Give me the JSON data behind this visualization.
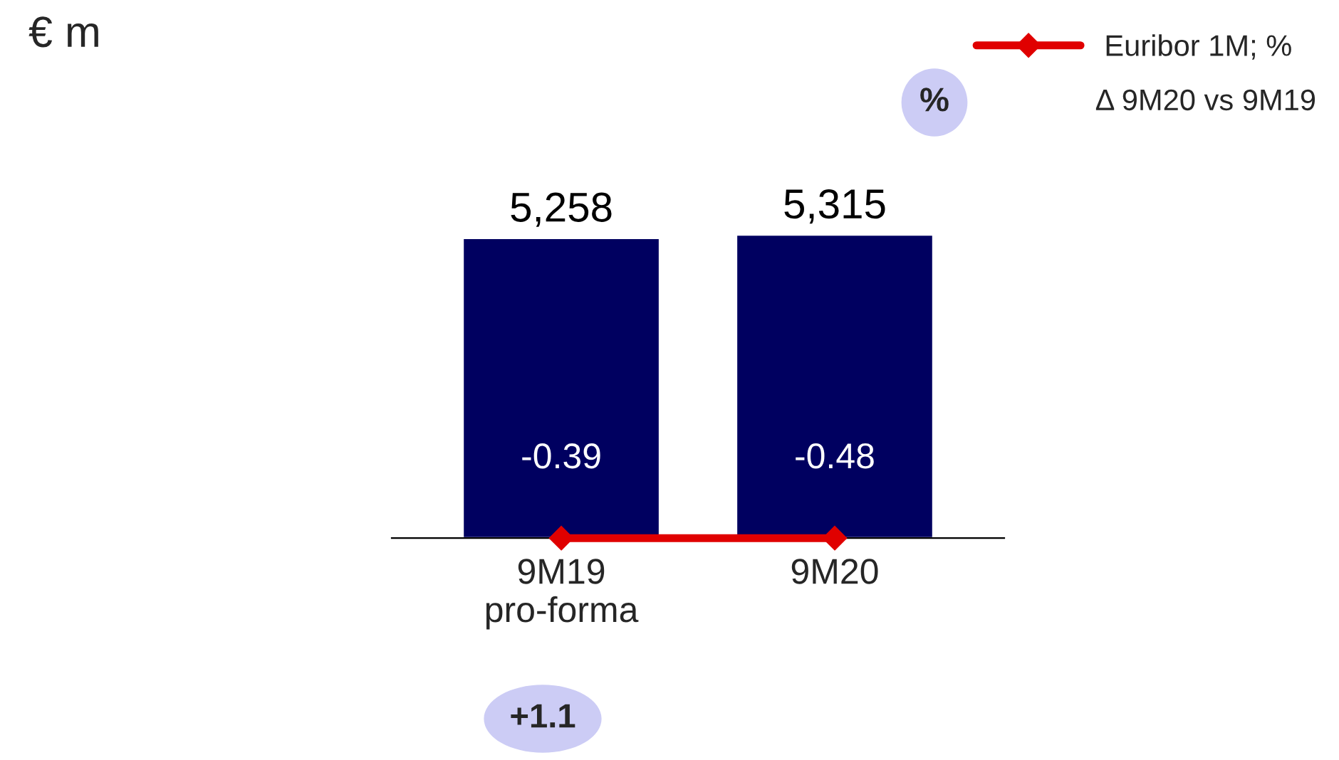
{
  "chart_data": {
    "type": "bar",
    "categories": [
      "9M19\npro-forma",
      "9M20"
    ],
    "series": [
      {
        "color": "#000060",
        "values": [
          5258,
          5315
        ],
        "value_labels": [
          "5,258",
          "5,315"
        ]
      },
      {
        "type": "line",
        "name": "Euribor 1M; %",
        "color": "#e00000",
        "marker": "diamond",
        "line_style": "solid",
        "values": [
          -0.39,
          -0.48
        ],
        "value_labels": [
          "-0.39",
          "-0.48"
        ]
      }
    ],
    "annotations": [
      "€ m",
      "%",
      "Δ 9M20 vs 9M19",
      "+1.1"
    ],
    "tick_labels": "x",
    "grid": false,
    "legend": "top right"
  }
}
